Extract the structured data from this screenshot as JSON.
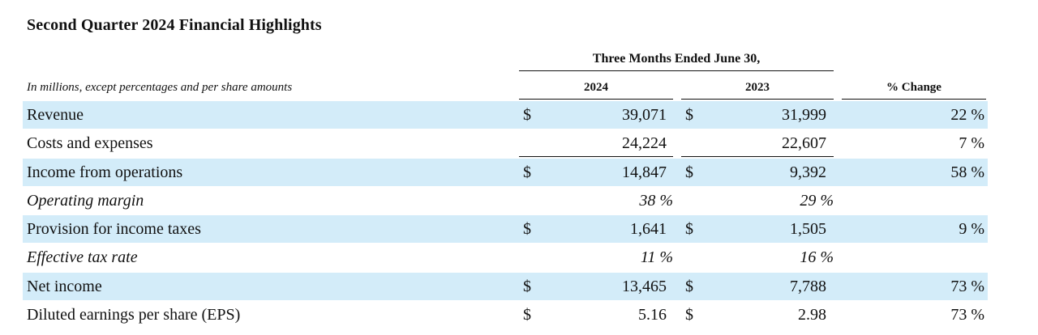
{
  "title": "Second Quarter 2024 Financial Highlights",
  "group_header": "Three Months Ended June 30,",
  "subtitle": "In millions, except percentages and per share amounts",
  "columns": {
    "y2024": "2024",
    "y2023": "2023",
    "change": "% Change"
  },
  "colors": {
    "row_shade": "#d3ecf9"
  },
  "rows": [
    {
      "label": "Revenue",
      "cur1": "$",
      "v2024": "39,071",
      "cur2": "$",
      "v2023": "31,999",
      "change": "22 %"
    },
    {
      "label": "Costs and expenses",
      "cur1": "",
      "v2024": "24,224",
      "cur2": "",
      "v2023": "22,607",
      "change": "7 %"
    },
    {
      "label": "Income from operations",
      "cur1": "$",
      "v2024": "14,847",
      "cur2": "$",
      "v2023": "9,392",
      "change": "58 %"
    },
    {
      "label": "Operating margin",
      "v2024": "38 %",
      "v2023": "29 %"
    },
    {
      "label": "Provision for income taxes",
      "cur1": "$",
      "v2024": "1,641",
      "cur2": "$",
      "v2023": "1,505",
      "change": "9 %"
    },
    {
      "label": "Effective tax rate",
      "v2024": "11 %",
      "v2023": "16 %"
    },
    {
      "label": "Net income",
      "cur1": "$",
      "v2024": "13,465",
      "cur2": "$",
      "v2023": "7,788",
      "change": "73 %"
    },
    {
      "label": "Diluted earnings per share (EPS)",
      "cur1": "$",
      "v2024": "5.16",
      "cur2": "$",
      "v2023": "2.98",
      "change": "73 %"
    }
  ]
}
